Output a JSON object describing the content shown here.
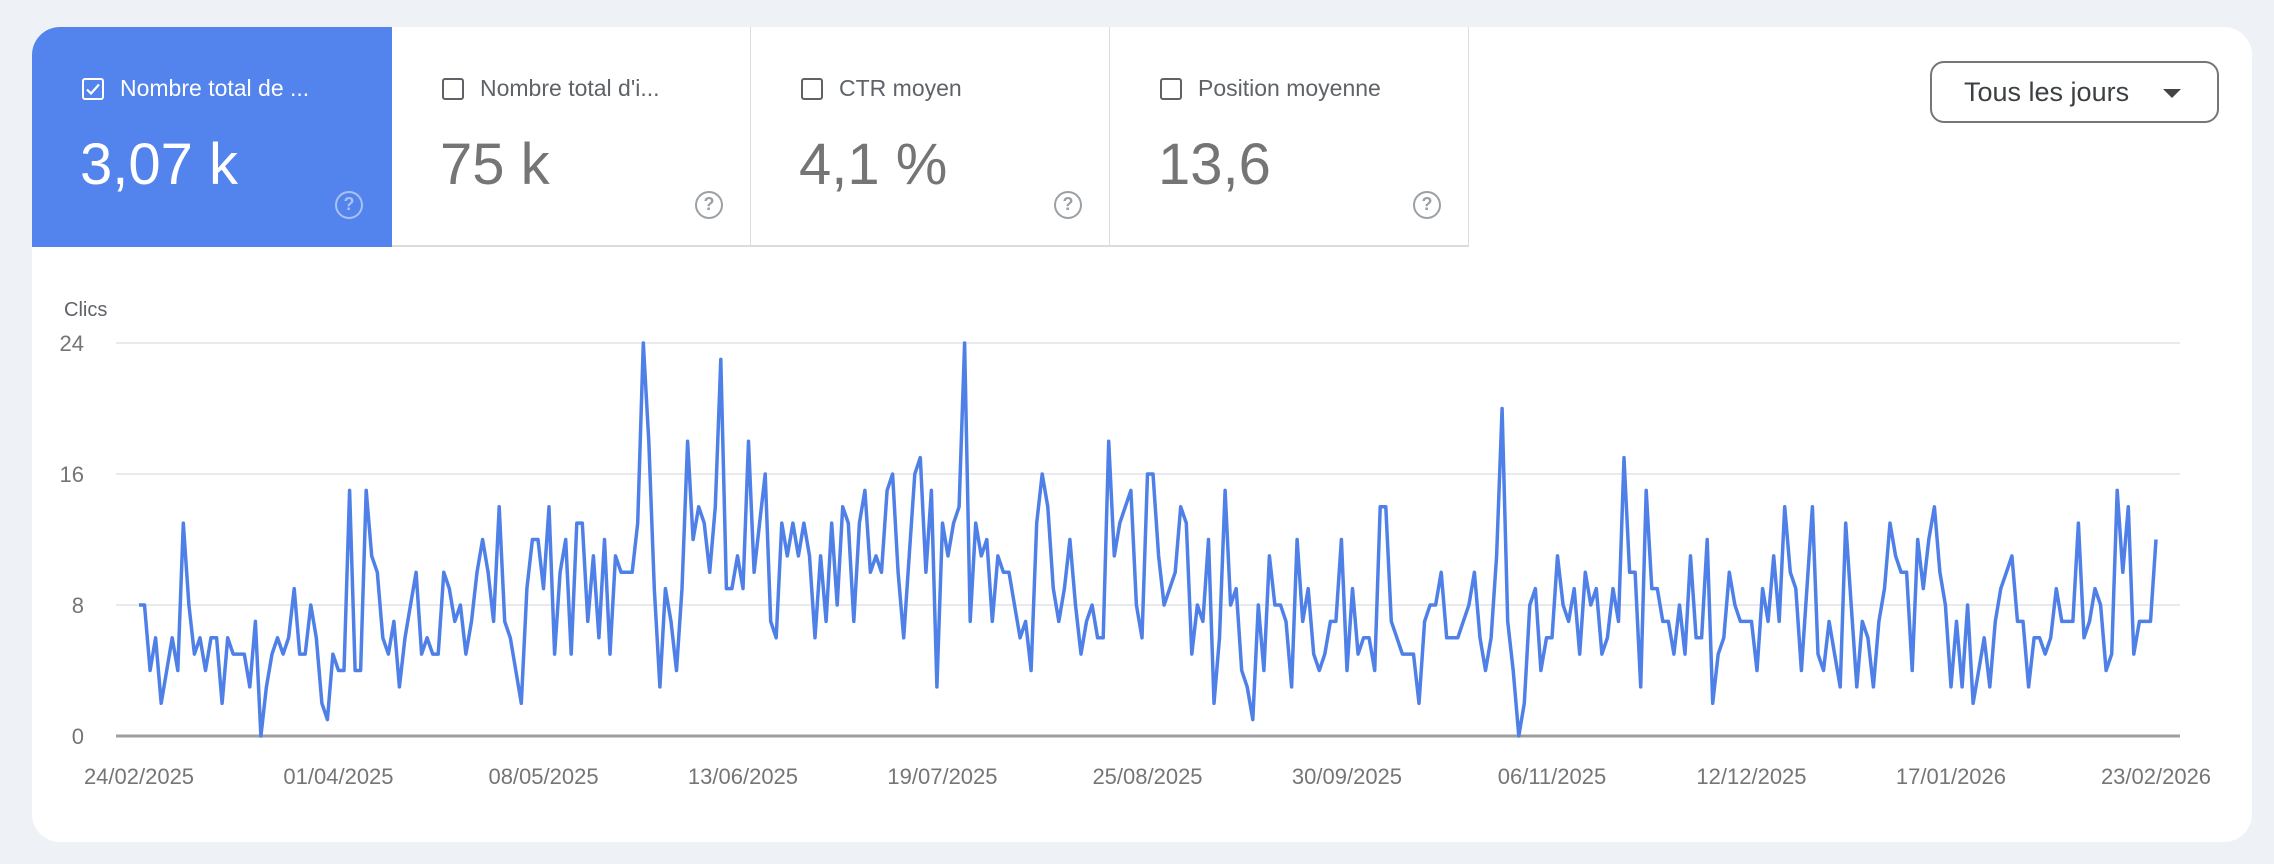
{
  "metrics": [
    {
      "label": "Nombre total de ...",
      "value": "3,07 k",
      "checked": true,
      "help_icon": "question-circle-icon"
    },
    {
      "label": "Nombre total d'i...",
      "value": "75 k",
      "checked": false,
      "help_icon": "question-circle-icon"
    },
    {
      "label": "CTR moyen",
      "value": "4,1 %",
      "checked": false,
      "help_icon": "question-circle-icon"
    },
    {
      "label": "Position moyenne",
      "value": "13,6",
      "checked": false,
      "help_icon": "question-circle-icon"
    }
  ],
  "dropdown": {
    "selected": "Tous les jours",
    "icon": "caret-down-icon"
  },
  "colors": {
    "accent": "#5383ec",
    "line": "#4f80e8",
    "background": "#eef2f7"
  },
  "chart_data": {
    "type": "line",
    "ylabel": "Clics",
    "ylim": [
      0,
      24
    ],
    "yticks": [
      "0",
      "8",
      "16",
      "24"
    ],
    "grid": true,
    "x_start": "24/02/2025",
    "x_end": "23/02/2026",
    "xticks": [
      {
        "label": "24/02/2025",
        "index": 0
      },
      {
        "label": "01/04/2025",
        "index": 36
      },
      {
        "label": "08/05/2025",
        "index": 73
      },
      {
        "label": "13/06/2025",
        "index": 109
      },
      {
        "label": "19/07/2025",
        "index": 145
      },
      {
        "label": "25/08/2025",
        "index": 182
      },
      {
        "label": "30/09/2025",
        "index": 218
      },
      {
        "label": "06/11/2025",
        "index": 255
      },
      {
        "label": "12/12/2025",
        "index": 291
      },
      {
        "label": "17/01/2026",
        "index": 327
      },
      {
        "label": "23/02/2026",
        "index": 364
      }
    ],
    "series": [
      {
        "values": [
          8,
          8,
          4,
          6,
          2,
          4,
          6,
          4,
          13,
          8,
          5,
          6,
          4,
          6,
          6,
          2,
          6,
          5,
          5,
          5,
          3,
          7,
          0,
          3,
          5,
          6,
          5,
          6,
          9,
          5,
          5,
          8,
          6,
          2,
          1,
          5,
          4,
          4,
          15,
          4,
          4,
          15,
          11,
          10,
          6,
          5,
          7,
          3,
          6,
          8,
          10,
          5,
          6,
          5,
          5,
          10,
          9,
          7,
          8,
          5,
          7,
          10,
          12,
          10,
          7,
          14,
          7,
          6,
          4,
          2,
          9,
          12,
          12,
          9,
          14,
          5,
          10,
          12,
          5,
          13,
          13,
          7,
          11,
          6,
          12,
          5,
          11,
          10,
          10,
          10,
          13,
          24,
          18,
          9,
          3,
          9,
          7,
          4,
          9,
          18,
          12,
          14,
          13,
          10,
          14,
          23,
          9,
          9,
          11,
          9,
          18,
          10,
          13,
          16,
          7,
          6,
          13,
          11,
          13,
          11,
          13,
          11,
          6,
          11,
          7,
          13,
          8,
          14,
          13,
          7,
          13,
          15,
          10,
          11,
          10,
          15,
          16,
          10,
          6,
          11,
          16,
          17,
          10,
          15,
          3,
          13,
          11,
          13,
          14,
          24,
          7,
          13,
          11,
          12,
          7,
          11,
          10,
          10,
          8,
          6,
          7,
          4,
          13,
          16,
          14,
          9,
          7,
          9,
          12,
          8,
          5,
          7,
          8,
          6,
          6,
          18,
          11,
          13,
          14,
          15,
          8,
          6,
          16,
          16,
          11,
          8,
          9,
          10,
          14,
          13,
          5,
          8,
          7,
          12,
          2,
          6,
          15,
          8,
          9,
          4,
          3,
          1,
          8,
          4,
          11,
          8,
          8,
          7,
          3,
          12,
          7,
          9,
          5,
          4,
          5,
          7,
          7,
          12,
          4,
          9,
          5,
          6,
          6,
          4,
          14,
          14,
          7,
          6,
          5,
          5,
          5,
          2,
          7,
          8,
          8,
          10,
          6,
          6,
          6,
          7,
          8,
          10,
          6,
          4,
          6,
          11,
          20,
          7,
          4,
          0,
          2,
          8,
          9,
          4,
          6,
          6,
          11,
          8,
          7,
          9,
          5,
          10,
          8,
          9,
          5,
          6,
          9,
          7,
          17,
          10,
          10,
          3,
          15,
          9,
          9,
          7,
          7,
          5,
          8,
          5,
          11,
          6,
          6,
          12,
          2,
          5,
          6,
          10,
          8,
          7,
          7,
          7,
          4,
          9,
          7,
          11,
          7,
          14,
          10,
          9,
          4,
          9,
          14,
          5,
          4,
          7,
          5,
          3,
          13,
          8,
          3,
          7,
          6,
          3,
          7,
          9,
          13,
          11,
          10,
          10,
          4,
          12,
          9,
          12,
          14,
          10,
          8,
          3,
          7,
          3,
          8,
          2,
          4,
          6,
          3,
          7,
          9,
          10,
          11,
          7,
          7,
          3,
          6,
          6,
          5,
          6,
          9,
          7,
          7,
          7,
          13,
          6,
          7,
          9,
          8,
          4,
          5,
          15,
          10,
          14,
          5,
          7,
          7,
          7,
          12
        ]
      }
    ]
  }
}
